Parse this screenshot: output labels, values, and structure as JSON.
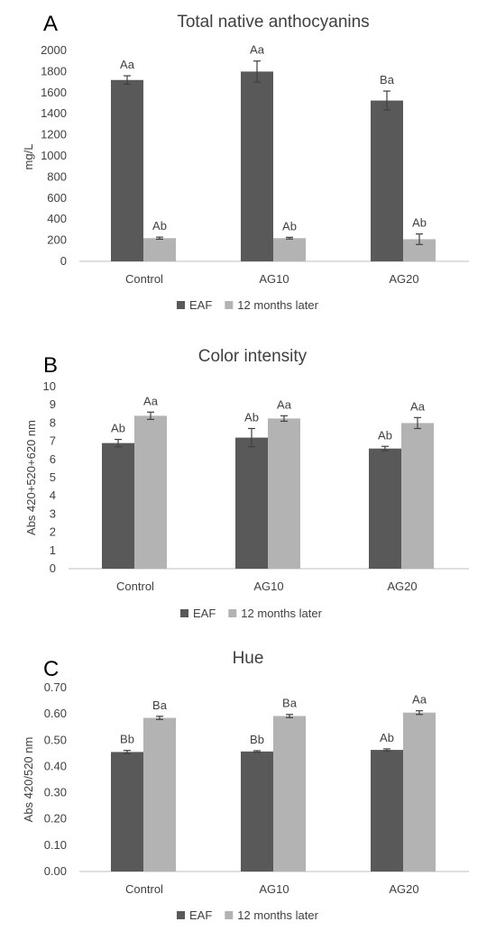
{
  "chart_data": [
    {
      "panel": "A",
      "type": "bar",
      "title": "Total native anthocyanins",
      "ylabel": "mg/L",
      "xlabel": "",
      "categories": [
        "Control",
        "AG10",
        "AG20"
      ],
      "ylim": [
        0,
        2000
      ],
      "yticks": [
        "0",
        "200",
        "400",
        "600",
        "800",
        "1000",
        "1200",
        "1400",
        "1600",
        "1800",
        "2000"
      ],
      "series": [
        {
          "name": "EAF",
          "values": [
            1720,
            1800,
            1525
          ],
          "errors": [
            40,
            100,
            90
          ],
          "labels": [
            "Aa",
            "Aa",
            "Ba"
          ],
          "color": "#595959"
        },
        {
          "name": "12 months later",
          "values": [
            220,
            220,
            210
          ],
          "errors": [
            10,
            8,
            50
          ],
          "labels": [
            "Ab",
            "Ab",
            "Ab"
          ],
          "color": "#b3b3b3"
        }
      ],
      "grid": false,
      "legend": "bottom"
    },
    {
      "panel": "B",
      "type": "bar",
      "title": "Color intensity",
      "ylabel": "Abs 420+520+620 nm",
      "xlabel": "",
      "categories": [
        "Control",
        "AG10",
        "AG20"
      ],
      "ylim": [
        0,
        10
      ],
      "yticks": [
        "0",
        "1",
        "2",
        "3",
        "4",
        "5",
        "6",
        "7",
        "8",
        "9",
        "10"
      ],
      "series": [
        {
          "name": "EAF",
          "values": [
            6.9,
            7.2,
            6.6
          ],
          "errors": [
            0.2,
            0.5,
            0.12
          ],
          "labels": [
            "Ab",
            "Ab",
            "Ab"
          ],
          "color": "#595959"
        },
        {
          "name": "12 months later",
          "values": [
            8.4,
            8.25,
            8.0
          ],
          "errors": [
            0.2,
            0.15,
            0.3
          ],
          "labels": [
            "Aa",
            "Aa",
            "Aa"
          ],
          "color": "#b3b3b3"
        }
      ],
      "grid": false,
      "legend": "bottom"
    },
    {
      "panel": "C",
      "type": "bar",
      "title": "Hue",
      "ylabel": "Abs 420/520 nm",
      "xlabel": "",
      "categories": [
        "Control",
        "AG10",
        "AG20"
      ],
      "ylim": [
        0,
        0.7
      ],
      "yticks": [
        "0.00",
        "0.10",
        "0.20",
        "0.30",
        "0.40",
        "0.50",
        "0.60",
        "0.70"
      ],
      "series": [
        {
          "name": "EAF",
          "values": [
            0.455,
            0.457,
            0.463
          ],
          "errors": [
            0.006,
            0.003,
            0.004
          ],
          "labels": [
            "Bb",
            "Bb",
            "Ab"
          ],
          "color": "#595959"
        },
        {
          "name": "12 months later",
          "values": [
            0.585,
            0.592,
            0.605
          ],
          "errors": [
            0.006,
            0.006,
            0.007
          ],
          "labels": [
            "Ba",
            "Ba",
            "Aa"
          ],
          "color": "#b3b3b3"
        }
      ],
      "grid": false,
      "legend": "bottom"
    }
  ]
}
